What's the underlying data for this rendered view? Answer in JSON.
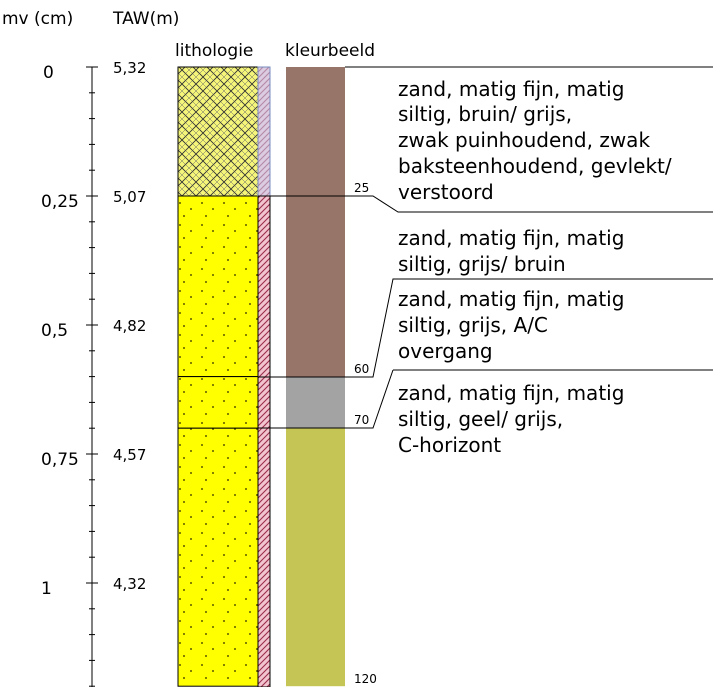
{
  "headers": {
    "depth": "mv (cm)",
    "taw": "TAW(m)",
    "lithology": "lithologie",
    "color": "kleurbeeld"
  },
  "depth_axis": {
    "min": 0,
    "max": 1.2,
    "major_ticks": [
      {
        "label": "0",
        "value": 0
      },
      {
        "label": "0,25",
        "value": 0.25
      },
      {
        "label": "0,5",
        "value": 0.5
      },
      {
        "label": "0,75",
        "value": 0.75
      },
      {
        "label": "1",
        "value": 1.0
      }
    ],
    "minor_step": 0.05
  },
  "taw_labels": [
    {
      "label": "5,32",
      "depth": 0
    },
    {
      "label": "5,07",
      "depth": 0.25
    },
    {
      "label": "4,82",
      "depth": 0.5
    },
    {
      "label": "4,57",
      "depth": 0.75
    },
    {
      "label": "4,32",
      "depth": 1.0
    }
  ],
  "lithology_layers": [
    {
      "top_cm": 0,
      "bottom_cm": 25,
      "pattern": "crosshatch",
      "color": "#f5f57a"
    },
    {
      "top_cm": 25,
      "bottom_cm": 60,
      "pattern": "dots",
      "color": "#ffff00"
    },
    {
      "top_cm": 60,
      "bottom_cm": 70,
      "pattern": "dots",
      "color": "#ffff00"
    },
    {
      "top_cm": 70,
      "bottom_cm": 120,
      "pattern": "dots",
      "color": "#ffff00"
    }
  ],
  "color_layers": [
    {
      "top_cm": 0,
      "bottom_cm": 60,
      "color": "#977569"
    },
    {
      "top_cm": 60,
      "bottom_cm": 70,
      "color": "#a3a3a3"
    },
    {
      "top_cm": 70,
      "bottom_cm": 120,
      "color": "#c5c556"
    }
  ],
  "depth_markers": [
    "25",
    "60",
    "70",
    "120"
  ],
  "descriptions": [
    {
      "lines": [
        "zand, matig fijn, matig",
        "siltig, bruin/ grijs,",
        "zwak puinhoudend, zwak",
        "baksteenhoudend, gevlekt/",
        "verstoord"
      ]
    },
    {
      "lines": [
        "zand, matig fijn, matig",
        "siltig, grijs/ bruin"
      ]
    },
    {
      "lines": [
        "zand, matig fijn, matig",
        "siltig, grijs, A/C",
        "overgang"
      ]
    },
    {
      "lines": [
        "zand, matig fijn, matig",
        "siltig, geel/ grijs,",
        "C-horizont"
      ]
    }
  ]
}
